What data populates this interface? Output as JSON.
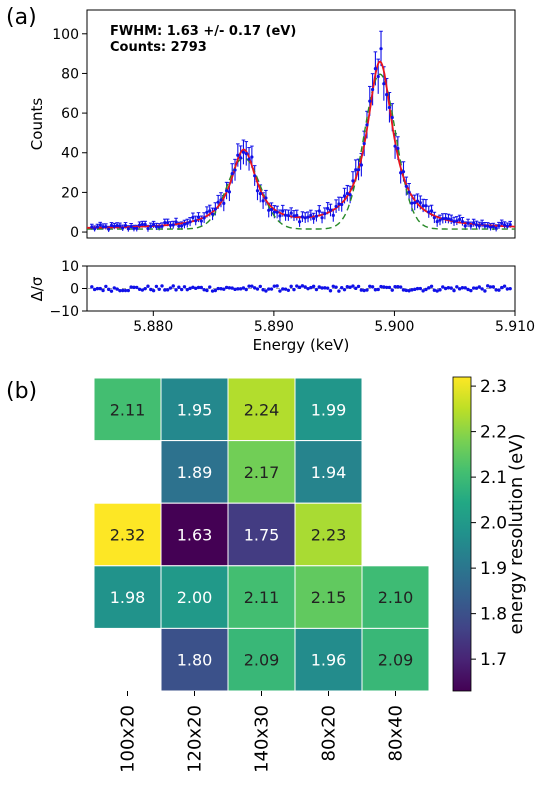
{
  "panel_a_label": "(a)",
  "panel_b_label": "(b)",
  "colors": {
    "data": "#1010e8",
    "fit": "#e8141e",
    "component": "#2a8a2a",
    "axis": "#000000"
  },
  "chart_data": [
    {
      "type": "scatter",
      "panel": "a-top",
      "annotation_fwhm": "FWHM:  1.63 +/- 0.17 (eV)",
      "annotation_counts": "Counts: 2793",
      "ylabel": "Counts",
      "ylim": [
        -3,
        112
      ],
      "xlim": [
        5.8745,
        5.91
      ],
      "yticks": [
        0,
        20,
        40,
        60,
        80,
        100
      ],
      "ytick_labels": [
        "0",
        "20",
        "40",
        "60",
        "80",
        "100"
      ],
      "grid": false,
      "model": {
        "peak1": {
          "center_keV": 5.8875,
          "fwhm_eV": 2.6,
          "height": 39
        },
        "peak2": {
          "center_keV": 5.8988,
          "fwhm_eV": 2.6,
          "height": 84
        },
        "background": 1.5
      },
      "series": [
        {
          "style": "points-with-errorbars"
        },
        {
          "style": "solid-line"
        },
        {
          "style": "dashed-line"
        }
      ]
    },
    {
      "type": "scatter",
      "panel": "a-bottom",
      "ylabel": "Δ/σ",
      "xlabel": "Energy (keV)",
      "ylim": [
        -10,
        10
      ],
      "yticks": [
        -10,
        0,
        10
      ],
      "ytick_labels": [
        "−10",
        "0",
        "10"
      ],
      "xlim": [
        5.8745,
        5.91
      ],
      "xticks": [
        5.88,
        5.89,
        5.9,
        5.91
      ],
      "xtick_labels": [
        "5.880",
        "5.890",
        "5.900",
        "5.910"
      ],
      "residual_spread": 1.2
    },
    {
      "type": "heatmap",
      "panel": "b",
      "columns": [
        "100x20",
        "120x20",
        "140x30",
        "80x20",
        "80x40"
      ],
      "rows": 5,
      "values": [
        [
          2.11,
          1.95,
          2.24,
          1.99,
          null
        ],
        [
          null,
          1.89,
          2.17,
          1.94,
          null
        ],
        [
          2.32,
          1.63,
          1.75,
          2.23,
          null
        ],
        [
          1.98,
          2.0,
          2.11,
          2.15,
          2.1
        ],
        [
          null,
          1.8,
          2.09,
          1.96,
          2.09
        ]
      ],
      "value_labels": [
        [
          "2.11",
          "1.95",
          "2.24",
          "1.99",
          ""
        ],
        [
          "",
          "1.89",
          "2.17",
          "1.94",
          ""
        ],
        [
          "2.32",
          "1.63",
          "1.75",
          "2.23",
          ""
        ],
        [
          "1.98",
          "2.00",
          "2.11",
          "2.15",
          "2.10"
        ],
        [
          "",
          "1.80",
          "2.09",
          "1.96",
          "2.09"
        ]
      ],
      "colorbar_label": "energy resolution (eV)",
      "colorbar_range": [
        1.63,
        2.32
      ],
      "colorbar_ticks": [
        1.7,
        1.8,
        1.9,
        2.0,
        2.1,
        2.2,
        2.3
      ],
      "colorbar_tick_labels": [
        "1.7",
        "1.8",
        "1.9",
        "2.0",
        "2.1",
        "2.2",
        "2.3"
      ],
      "colormap": "viridis"
    }
  ]
}
